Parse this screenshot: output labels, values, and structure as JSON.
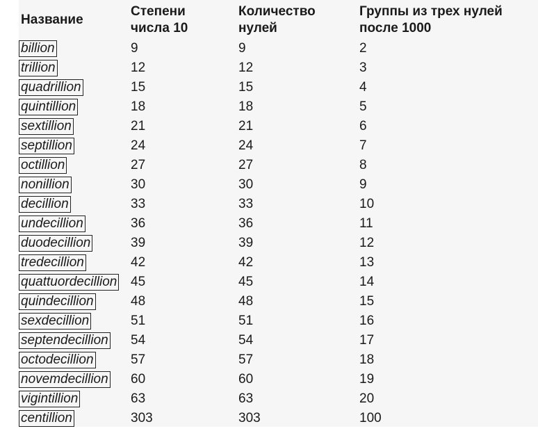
{
  "table": {
    "headers": [
      "Название",
      "Степени числа 10",
      "Количество нулей",
      "Группы из трех нулей после 1000"
    ],
    "header_lines": [
      [
        "Название"
      ],
      [
        "Степени",
        "числа 10"
      ],
      [
        "Количество",
        "нулей"
      ],
      [
        "Группы из трех нулей",
        "после 1000"
      ]
    ],
    "rows": [
      {
        "name": "billion",
        "power": "9",
        "zeros": "9",
        "groups": "2"
      },
      {
        "name": "trillion",
        "power": "12",
        "zeros": "12",
        "groups": "3"
      },
      {
        "name": "quadrillion",
        "power": "15",
        "zeros": "15",
        "groups": "4"
      },
      {
        "name": "quintillion",
        "power": "18",
        "zeros": "18",
        "groups": "5"
      },
      {
        "name": "sextillion",
        "power": "21",
        "zeros": "21",
        "groups": "6"
      },
      {
        "name": "septillion",
        "power": "24",
        "zeros": "24",
        "groups": "7"
      },
      {
        "name": "octillion",
        "power": "27",
        "zeros": "27",
        "groups": "8"
      },
      {
        "name": "nonillion",
        "power": "30",
        "zeros": "30",
        "groups": "9"
      },
      {
        "name": "decillion",
        "power": "33",
        "zeros": "33",
        "groups": "10"
      },
      {
        "name": "undecillion",
        "power": "36",
        "zeros": "36",
        "groups": "11"
      },
      {
        "name": "duodecillion",
        "power": "39",
        "zeros": "39",
        "groups": "12"
      },
      {
        "name": "tredecillion",
        "power": "42",
        "zeros": "42",
        "groups": "13"
      },
      {
        "name": "quattuordecillion",
        "power": "45",
        "zeros": "45",
        "groups": "14"
      },
      {
        "name": "quindecillion",
        "power": "48",
        "zeros": "48",
        "groups": "15"
      },
      {
        "name": "sexdecillion",
        "power": "51",
        "zeros": "51",
        "groups": "16"
      },
      {
        "name": "septendecillion",
        "power": "54",
        "zeros": "54",
        "groups": "17"
      },
      {
        "name": "octodecillion",
        "power": "57",
        "zeros": "57",
        "groups": "18"
      },
      {
        "name": "novemdecillion",
        "power": "60",
        "zeros": "60",
        "groups": "19"
      },
      {
        "name": "vigintillion",
        "power": "63",
        "zeros": "63",
        "groups": "20"
      },
      {
        "name": "centillion",
        "power": "303",
        "zeros": "303",
        "groups": "100"
      }
    ]
  },
  "colors": {
    "table_background": "#f6f6f6",
    "text": "#1a1a1a",
    "name_border": "#222222"
  }
}
